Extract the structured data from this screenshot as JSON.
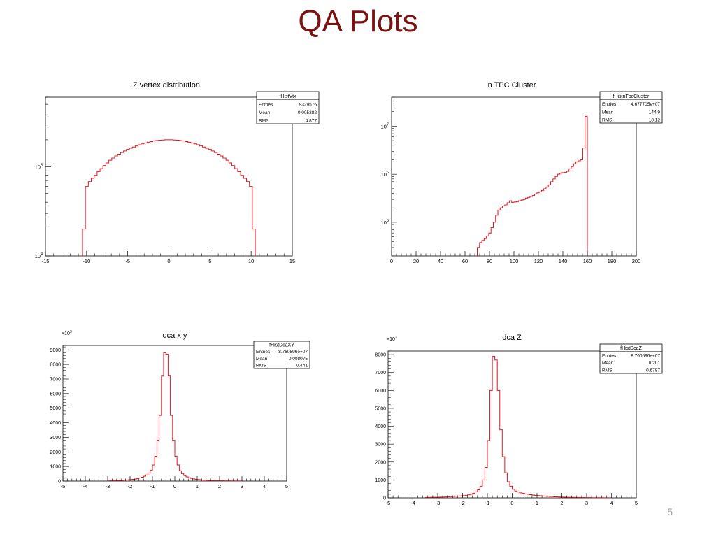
{
  "slide": {
    "title": "QA Plots",
    "page_number": "5"
  },
  "chart_data": [
    {
      "type": "histogram",
      "title": "Z vertex distribution",
      "xlim": [
        -15,
        15
      ],
      "ylim_log": [
        10000,
        600000
      ],
      "log_y": true,
      "xticks": [
        "-15",
        "-10",
        "-5",
        "0",
        "5",
        "10",
        "15"
      ],
      "ytick_labels": [
        {
          "base": "10",
          "exp": "4",
          "value": 10000
        },
        {
          "base": "10",
          "exp": "5",
          "value": 100000
        }
      ],
      "y_multiplier": "",
      "stats": {
        "name": "fHistVtx",
        "rows": [
          [
            "Entries",
            "9329576"
          ],
          [
            "Mean",
            "0.005382"
          ],
          [
            "RMS",
            "4.877"
          ]
        ]
      },
      "bins": {
        "x_start": -10.5,
        "x_end": 10.5,
        "values": [
          20000,
          60000,
          68000,
          74000,
          80000,
          88000,
          95000,
          103000,
          110000,
          118000,
          125000,
          132000,
          138000,
          144000,
          150000,
          156000,
          161000,
          166000,
          171000,
          176000,
          180000,
          184000,
          188000,
          191000,
          194000,
          196000,
          198000,
          199000,
          200000,
          200000,
          200000,
          199000,
          198000,
          196000,
          194000,
          191000,
          188000,
          184000,
          180000,
          176000,
          171000,
          166000,
          161000,
          156000,
          150000,
          144000,
          138000,
          132000,
          125000,
          118000,
          110000,
          103000,
          95000,
          88000,
          80000,
          74000,
          68000,
          60000,
          20000
        ]
      },
      "color": "#e8141b"
    },
    {
      "type": "histogram",
      "title": "n TPC Cluster",
      "xlim": [
        0,
        200
      ],
      "ylim_log": [
        20000,
        40000000
      ],
      "log_y": true,
      "xticks": [
        "0",
        "20",
        "40",
        "60",
        "80",
        "100",
        "120",
        "140",
        "160",
        "180",
        "200"
      ],
      "ytick_labels": [
        {
          "base": "10",
          "exp": "5",
          "value": 100000
        },
        {
          "base": "10",
          "exp": "6",
          "value": 1000000
        },
        {
          "base": "10",
          "exp": "7",
          "value": 10000000
        }
      ],
      "y_multiplier": "",
      "stats": {
        "name": "fHistnTpcCluster",
        "rows": [
          [
            "Entries",
            "4.677705e+07"
          ],
          [
            "Mean",
            "144.9"
          ],
          [
            "RMS",
            "18.12"
          ]
        ]
      },
      "bins": {
        "x_start": 70,
        "x_end": 160,
        "values": [
          30000,
          38000,
          42000,
          46000,
          52000,
          60000,
          78000,
          100000,
          140000,
          180000,
          200000,
          220000,
          230000,
          255000,
          280000,
          260000,
          265000,
          270000,
          280000,
          290000,
          300000,
          320000,
          330000,
          345000,
          360000,
          385000,
          410000,
          430000,
          460000,
          500000,
          540000,
          600000,
          700000,
          800000,
          900000,
          1000000,
          1050000,
          1080000,
          1100000,
          1150000,
          1300000,
          1450000,
          1650000,
          1800000,
          1900000,
          2000000,
          3500000,
          16000000
        ]
      },
      "color": "#e8141b"
    },
    {
      "type": "histogram",
      "title": "dca x y",
      "xlim": [
        -5,
        5
      ],
      "ylim": [
        0,
        9300
      ],
      "log_y": false,
      "xticks": [
        "-5",
        "-4",
        "-3",
        "-2",
        "-1",
        "0",
        "1",
        "2",
        "3",
        "4",
        "5"
      ],
      "yticks": [
        0,
        1000,
        2000,
        3000,
        4000,
        5000,
        6000,
        7000,
        8000,
        9000
      ],
      "ytick_text": [
        "0",
        "1000",
        "2000",
        "3000",
        "4000",
        "5000",
        "6000",
        "7000",
        "8000",
        "9000"
      ],
      "y_multiplier": "×10",
      "y_multiplier_exp": "3",
      "stats": {
        "name": "fHistDcaXY",
        "rows": [
          [
            "Entries",
            "8.760596e+07"
          ],
          [
            "Mean",
            "0.008075"
          ],
          [
            "RMS",
            "0.441"
          ]
        ]
      },
      "bins": {
        "x_start": -3.0,
        "x_end": 3.0,
        "values": [
          20,
          25,
          30,
          35,
          40,
          50,
          55,
          65,
          75,
          90,
          100,
          120,
          145,
          175,
          215,
          265,
          330,
          420,
          550,
          750,
          1100,
          1700,
          2800,
          4500,
          7200,
          8800,
          8700,
          7200,
          4500,
          2800,
          1700,
          1100,
          700,
          500,
          380,
          290,
          230,
          185,
          150,
          125,
          105,
          88,
          75,
          65,
          56,
          48,
          42,
          36,
          32,
          28,
          25,
          22,
          20,
          18,
          16,
          15,
          14,
          13,
          12,
          11
        ]
      },
      "color": "#e8141b"
    },
    {
      "type": "histogram",
      "title": "dca Z",
      "xlim": [
        -5,
        5
      ],
      "ylim": [
        0,
        8200
      ],
      "log_y": false,
      "xticks": [
        "-5",
        "-4",
        "-3",
        "-2",
        "-1",
        "0",
        "1",
        "2",
        "3",
        "4",
        "5"
      ],
      "yticks": [
        0,
        1000,
        2000,
        3000,
        4000,
        5000,
        6000,
        7000,
        8000
      ],
      "ytick_text": [
        "0",
        "1000",
        "2000",
        "3000",
        "4000",
        "5000",
        "6000",
        "7000",
        "8000"
      ],
      "y_multiplier": "×10",
      "y_multiplier_exp": "3",
      "stats": {
        "name": "fHistDcaZ",
        "rows": [
          [
            "Entries",
            "8.760596e+07"
          ],
          [
            "Mean",
            "0.201"
          ],
          [
            "RMS",
            "0.6787"
          ]
        ]
      },
      "bins": {
        "x_start": -3.5,
        "x_end": 4.0,
        "values": [
          20,
          25,
          28,
          32,
          36,
          40,
          45,
          50,
          56,
          62,
          70,
          78,
          86,
          96,
          108,
          120,
          140,
          165,
          200,
          250,
          330,
          450,
          650,
          1000,
          1700,
          3200,
          6000,
          7900,
          7700,
          6000,
          3800,
          2300,
          1400,
          900,
          650,
          480,
          380,
          320,
          280,
          250,
          220,
          195,
          175,
          158,
          142,
          128,
          115,
          103,
          92,
          83,
          74,
          66,
          59,
          53,
          47,
          42,
          38,
          34,
          30,
          27,
          24,
          22,
          20,
          18,
          16,
          14,
          13,
          12,
          11,
          10,
          9,
          8,
          7,
          6,
          5
        ]
      },
      "color": "#e8141b"
    }
  ]
}
